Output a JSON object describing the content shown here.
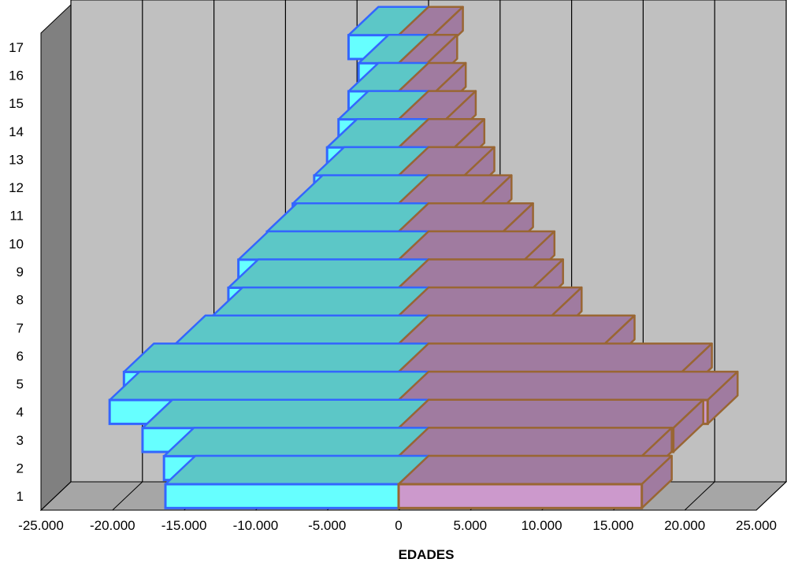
{
  "chart_data": {
    "type": "bar",
    "orientation": "horizontal",
    "style": "3d-population-pyramid",
    "title": "",
    "xlabel": "EDADES",
    "ylabel": "",
    "xlim": [
      -25000,
      25000
    ],
    "x_ticks": [
      -25000,
      -20000,
      -15000,
      -10000,
      -5000,
      0,
      5000,
      10000,
      15000,
      20000,
      25000
    ],
    "x_tick_labels": [
      "-25.000",
      "-20.000",
      "-15.000",
      "-10.000",
      "-5.000",
      "0",
      "5.000",
      "10.000",
      "15.000",
      "20.000",
      "25.000"
    ],
    "categories": [
      "1",
      "2",
      "3",
      "4",
      "5",
      "6",
      "7",
      "8",
      "9",
      "10",
      "11",
      "12",
      "13",
      "14",
      "15",
      "16",
      "17"
    ],
    "series": [
      {
        "values": [
          -16300,
          -16400,
          -17900,
          -20200,
          -19200,
          -15600,
          -13000,
          -11900,
          -11200,
          -9200,
          -7400,
          -5900,
          -5000,
          -4200,
          -3500,
          -2800,
          -3500
        ],
        "color_front": "#66ffff",
        "color_side": "#5cc7c7",
        "color_edge": "#3366ff"
      },
      {
        "values": [
          17000,
          17000,
          19200,
          21600,
          19800,
          14400,
          10700,
          9400,
          8800,
          7300,
          5800,
          4600,
          3900,
          3300,
          2600,
          2000,
          2400
        ],
        "color_front": "#cc99cc",
        "color_side": "#a07ba0",
        "color_edge": "#996633"
      }
    ],
    "grid": true,
    "legend": "none",
    "colors": {
      "wall": "#c0c0c0",
      "floor": "#a6a6a6",
      "side_wall": "#808080",
      "gridline": "#000000"
    }
  }
}
